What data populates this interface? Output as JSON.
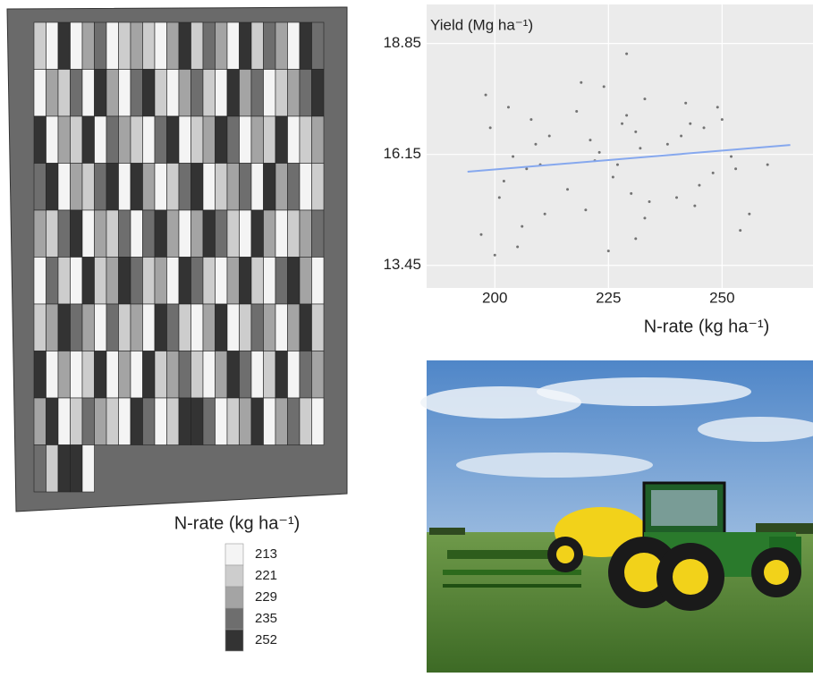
{
  "chart_data": [
    {
      "type": "heatmap",
      "legend": {
        "title": "N-rate (kg ha⁻¹)",
        "categories": [
          213,
          221,
          229,
          235,
          252
        ],
        "colors": [
          "#f4f4f4",
          "#cdcdcd",
          "#a4a4a4",
          "#6e6e6e",
          "#333333"
        ]
      },
      "border_color": "#6a6a6a",
      "values": [
        [
          221,
          213,
          252,
          213,
          229,
          235,
          213,
          221,
          229,
          221,
          213,
          229,
          252,
          221,
          235,
          229,
          213,
          252,
          221,
          235,
          229,
          213,
          252,
          235
        ],
        [
          213,
          229,
          221,
          235,
          213,
          252,
          229,
          213,
          235,
          252,
          221,
          213,
          229,
          235,
          221,
          213,
          252,
          229,
          235,
          213,
          221,
          229,
          235,
          252
        ],
        [
          252,
          213,
          229,
          221,
          252,
          213,
          235,
          229,
          221,
          213,
          235,
          252,
          213,
          221,
          229,
          252,
          235,
          213,
          229,
          221,
          252,
          213,
          221,
          229
        ],
        [
          235,
          252,
          213,
          229,
          221,
          235,
          252,
          213,
          252,
          229,
          213,
          221,
          235,
          252,
          213,
          221,
          229,
          235,
          213,
          252,
          229,
          235,
          213,
          221
        ],
        [
          229,
          221,
          235,
          252,
          213,
          229,
          221,
          235,
          213,
          235,
          252,
          229,
          213,
          229,
          252,
          235,
          221,
          213,
          252,
          229,
          213,
          221,
          229,
          235
        ],
        [
          213,
          235,
          221,
          213,
          252,
          221,
          229,
          252,
          235,
          221,
          229,
          213,
          252,
          235,
          221,
          213,
          229,
          252,
          221,
          213,
          235,
          252,
          229,
          213
        ],
        [
          221,
          229,
          252,
          235,
          229,
          213,
          235,
          221,
          229,
          213,
          252,
          235,
          221,
          213,
          229,
          252,
          213,
          221,
          235,
          229,
          213,
          229,
          252,
          221
        ],
        [
          252,
          213,
          229,
          213,
          221,
          252,
          213,
          229,
          213,
          252,
          221,
          229,
          235,
          221,
          213,
          229,
          252,
          235,
          213,
          221,
          252,
          213,
          235,
          229
        ],
        [
          229,
          252,
          213,
          221,
          235,
          229,
          221,
          213,
          252,
          235,
          213,
          221,
          252,
          252,
          235,
          213,
          221,
          229,
          252,
          213,
          229,
          235,
          221,
          213
        ],
        [
          235,
          221,
          252,
          252,
          213,
          null,
          null,
          null,
          null,
          null,
          null,
          null,
          null,
          null,
          null,
          null,
          null,
          null,
          null,
          null,
          null,
          null,
          null,
          null
        ]
      ]
    },
    {
      "type": "scatter",
      "ylabel": "Yield (Mg ha⁻¹)",
      "xlabel": "N-rate (kg ha⁻¹)",
      "xlim": [
        185,
        270
      ],
      "ylim": [
        12.9,
        19.8
      ],
      "xticks": [
        200,
        225,
        250
      ],
      "yticks": [
        13.45,
        16.15,
        18.85
      ],
      "grid": true,
      "color": "#555555",
      "x": [
        197,
        199,
        201,
        203,
        205,
        207,
        209,
        211,
        198,
        202,
        204,
        206,
        208,
        210,
        200,
        212,
        216,
        218,
        220,
        222,
        224,
        226,
        228,
        229,
        230,
        231,
        232,
        233,
        234,
        221,
        225,
        227,
        229,
        231,
        233,
        219,
        223,
        238,
        240,
        242,
        244,
        246,
        248,
        250,
        252,
        254,
        241,
        245,
        249,
        253,
        243,
        256,
        260
      ],
      "values": [
        14.2,
        16.8,
        15.1,
        17.3,
        13.9,
        15.8,
        16.4,
        14.7,
        17.6,
        15.5,
        16.1,
        14.4,
        17.0,
        15.9,
        13.7,
        16.6,
        15.3,
        17.2,
        14.8,
        16.0,
        17.8,
        15.6,
        16.9,
        18.6,
        15.2,
        14.1,
        16.3,
        17.5,
        15.0,
        16.5,
        13.8,
        15.9,
        17.1,
        16.7,
        14.6,
        17.9,
        16.2,
        16.4,
        15.1,
        17.4,
        14.9,
        16.8,
        15.7,
        17.0,
        16.1,
        14.3,
        16.6,
        15.4,
        17.3,
        15.8,
        16.9,
        14.7,
        15.9
      ],
      "trend": {
        "x": [
          194,
          265
        ],
        "values": [
          15.73,
          16.38
        ],
        "color": "#86a8ee"
      }
    }
  ]
}
